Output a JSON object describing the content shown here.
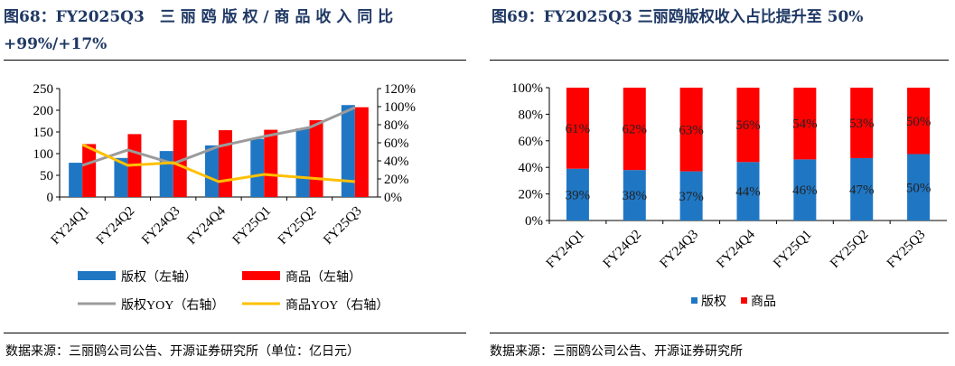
{
  "figures": [
    {
      "title_line1": "图68：FY2025Q3　三 丽 鸥 版 权 / 商 品 收 入 同 比",
      "title_line2": "+99%/+17%",
      "source": "数据来源：三丽鸥公司公告、开源证券研究所（单位：亿日元）"
    },
    {
      "title_line1": "图69：FY2025Q3 三丽鸥版权收入占比提升至 50%",
      "source": "数据来源：三丽鸥公司公告、开源证券研究所"
    }
  ],
  "colors": {
    "blue": "#1f77c4",
    "red": "#ff0000",
    "gray": "#9b9b9b",
    "yellow": "#ffc000",
    "title": "#1f3864"
  },
  "chart_data": [
    {
      "type": "bar",
      "categories": [
        "FY24Q1",
        "FY24Q2",
        "FY24Q3",
        "FY24Q4",
        "FY25Q1",
        "FY25Q2",
        "FY25Q3"
      ],
      "series": [
        {
          "name": "版权（左轴）",
          "kind": "bar",
          "axis": "left",
          "values": [
            79,
            90,
            106,
            119,
            134,
            158,
            212
          ]
        },
        {
          "name": "商品（左轴）",
          "kind": "bar",
          "axis": "left",
          "values": [
            122,
            145,
            177,
            154,
            155,
            177,
            207
          ]
        },
        {
          "name": "版权YOY（右轴）",
          "kind": "line",
          "axis": "right",
          "values": [
            0.35,
            0.52,
            0.37,
            0.56,
            0.67,
            0.77,
            0.99
          ]
        },
        {
          "name": "商品YOY（右轴）",
          "kind": "line",
          "axis": "right",
          "values": [
            0.58,
            0.35,
            0.38,
            0.17,
            0.25,
            0.21,
            0.17
          ]
        }
      ],
      "ylim_left": [
        0,
        250
      ],
      "yticks_left": [
        "0",
        "50",
        "100",
        "150",
        "200",
        "250"
      ],
      "ylim_right": [
        0,
        1.2
      ],
      "yticks_right": [
        "0%",
        "20%",
        "40%",
        "60%",
        "80%",
        "100%",
        "120%"
      ],
      "grid": false,
      "legend": "bottom"
    },
    {
      "type": "bar",
      "stacked": true,
      "categories": [
        "FY24Q1",
        "FY24Q2",
        "FY24Q3",
        "FY24Q4",
        "FY25Q1",
        "FY25Q2",
        "FY25Q3"
      ],
      "series": [
        {
          "name": "版权",
          "values": [
            0.39,
            0.38,
            0.37,
            0.44,
            0.46,
            0.47,
            0.5
          ],
          "labels": [
            "39%",
            "38%",
            "37%",
            "44%",
            "46%",
            "47%",
            "50%"
          ]
        },
        {
          "name": "商品",
          "values": [
            0.61,
            0.62,
            0.63,
            0.56,
            0.54,
            0.53,
            0.5
          ],
          "labels": [
            "61%",
            "62%",
            "63%",
            "56%",
            "54%",
            "53%",
            "50%"
          ]
        }
      ],
      "ylim": [
        0,
        1
      ],
      "yticks": [
        "0%",
        "20%",
        "40%",
        "60%",
        "80%",
        "100%"
      ],
      "grid": false,
      "legend": "bottom"
    }
  ]
}
